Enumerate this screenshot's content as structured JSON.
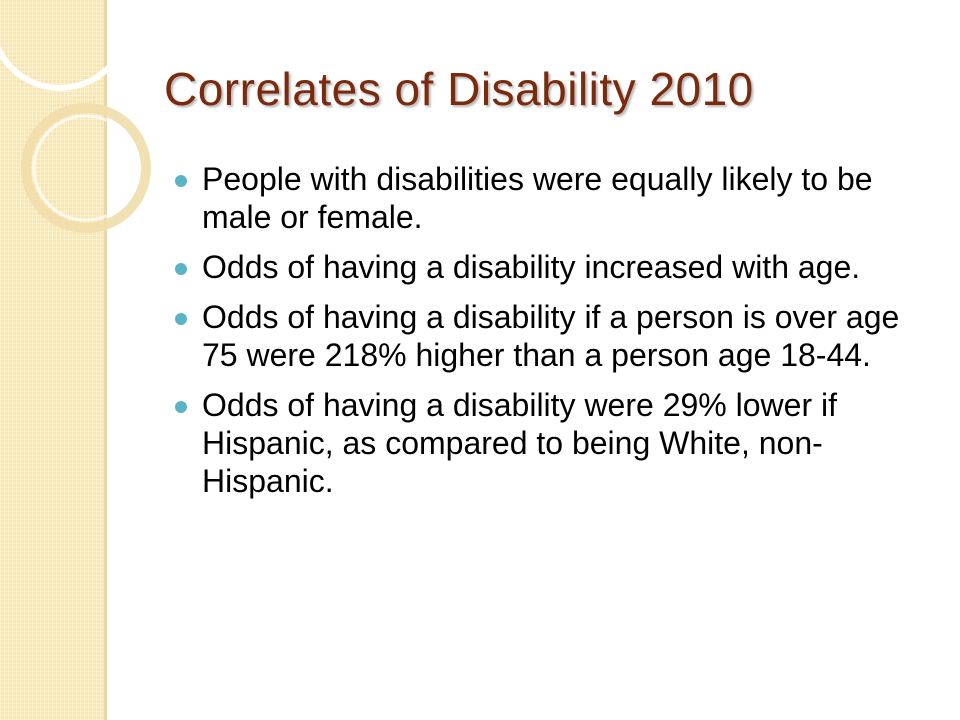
{
  "slide": {
    "title": "Correlates of Disability 2010",
    "bullets": [
      {
        "text": "People with disabilities were equally likely to be male or female."
      },
      {
        "text": "Odds of having a disability increased with age."
      },
      {
        "text": "Odds of having a disability if a person is over age 75 were 218% higher than a person age 18-44."
      },
      {
        "text": "Odds of having a disability were 29% lower if Hispanic, as compared to being White, non-Hispanic."
      }
    ]
  },
  "colors": {
    "title": "#7a2a0d",
    "bullet_dot": "#5ab4c6",
    "side_band": "#f7e6b4"
  }
}
